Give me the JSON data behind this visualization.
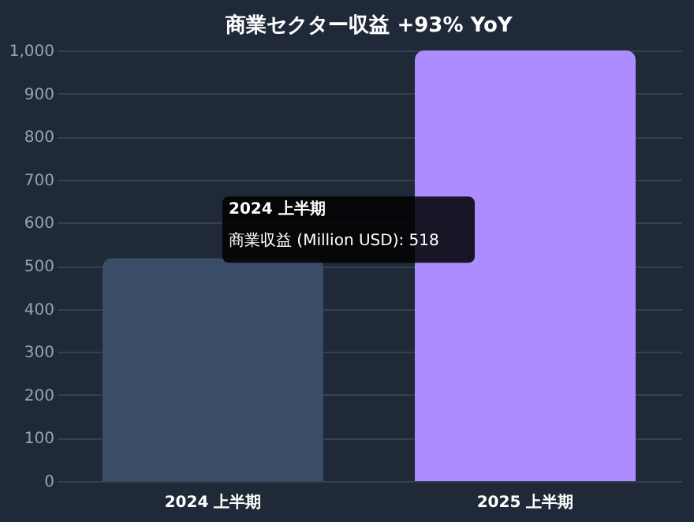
{
  "chart_data": {
    "type": "bar",
    "title": "商業セクター収益 +93% YoY",
    "categories": [
      "2024 上半期",
      "2025 上半期"
    ],
    "values": [
      518,
      1000
    ],
    "colors": [
      "#3b4c67",
      "#ad8cff"
    ],
    "ylim": [
      0,
      1000
    ],
    "yticks": [
      0,
      100,
      200,
      300,
      400,
      500,
      600,
      700,
      800,
      900,
      {
        "value": 1000,
        "label": "1,000"
      }
    ],
    "grid": "y",
    "annotations": [
      {
        "text": "2024 上半期",
        "x": "2024 上半期",
        "y": 518
      },
      {
        "text": "商業収益 (Million USD): 518",
        "x": "2024 上半期",
        "y": 518
      }
    ]
  }
}
